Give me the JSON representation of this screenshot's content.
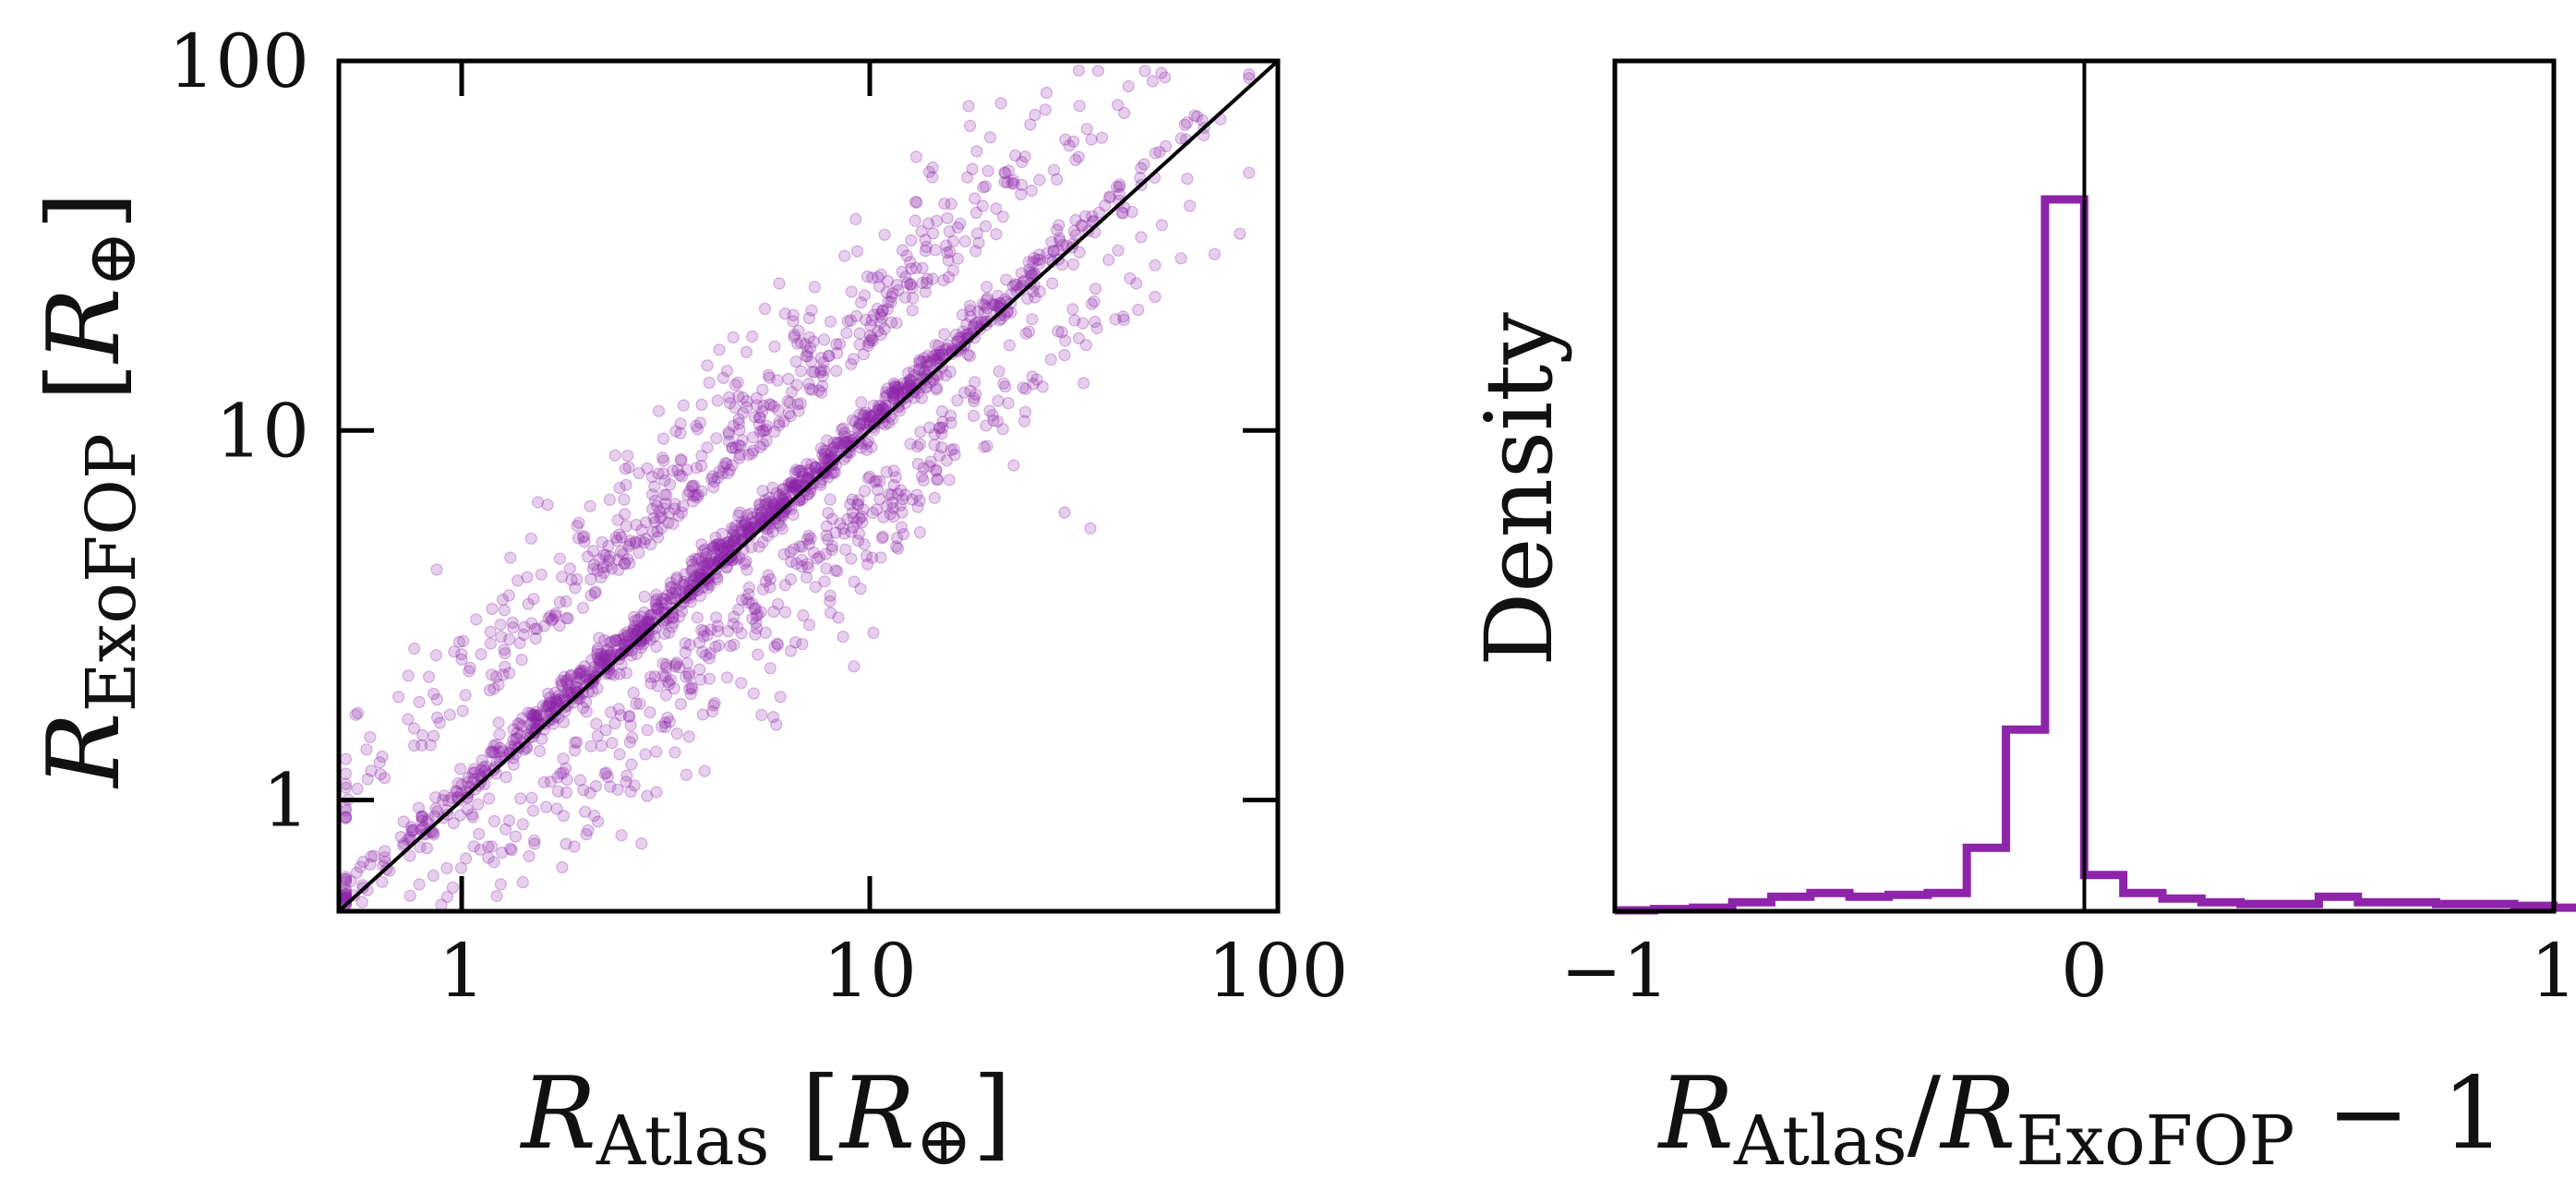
{
  "colors": {
    "accent": "#8e24aa",
    "axis": "#000000",
    "background": "#ffffff"
  },
  "chart_data": [
    {
      "type": "scatter",
      "xscale": "log",
      "yscale": "log",
      "xlim": [
        0.5,
        100
      ],
      "ylim": [
        0.5,
        100
      ],
      "xlabel": {
        "main": "R",
        "sub": "Atlas",
        "bracket_open": " [",
        "inner_main": "R",
        "inner_sub": "⊕",
        "bracket_close": "]"
      },
      "ylabel": {
        "main": "R",
        "sub": "ExoFOP",
        "bracket_open": " [",
        "inner_main": "R",
        "inner_sub": "⊕",
        "bracket_close": "]"
      },
      "xticks": [
        {
          "value": 1,
          "label": "1"
        },
        {
          "value": 10,
          "label": "10"
        },
        {
          "value": 100,
          "label": "100"
        }
      ],
      "yticks": [
        {
          "value": 1,
          "label": "1"
        },
        {
          "value": 10,
          "label": "10"
        },
        {
          "value": 100,
          "label": "100"
        }
      ],
      "reference_line": "y = x",
      "marker_color": "#8e24aa",
      "marker_alpha": 0.22,
      "n_points": 2200,
      "points_sample": [
        [
          0.55,
          1.7
        ],
        [
          0.6,
          1.2
        ],
        [
          0.7,
          1.9
        ],
        [
          0.8,
          0.9
        ],
        [
          0.9,
          1.0
        ],
        [
          1.0,
          1.1
        ],
        [
          1.2,
          1.4
        ],
        [
          1.5,
          1.7
        ],
        [
          1.8,
          2.1
        ],
        [
          2.0,
          2.3
        ],
        [
          2.5,
          2.8
        ],
        [
          3.0,
          3.3
        ],
        [
          3.5,
          3.8
        ],
        [
          4.0,
          4.3
        ],
        [
          5.0,
          5.3
        ],
        [
          6.0,
          6.2
        ],
        [
          7.0,
          7.3
        ],
        [
          8.0,
          8.4
        ],
        [
          9.0,
          9.4
        ],
        [
          10.0,
          10.5
        ],
        [
          12.0,
          12.5
        ],
        [
          15.0,
          16.0
        ],
        [
          18.0,
          19.0
        ],
        [
          20.0,
          22.0
        ],
        [
          13.0,
          55.0
        ],
        [
          3.0,
          1.05
        ],
        [
          30.0,
          6.0
        ],
        [
          50.0,
          28.0
        ],
        [
          70.0,
          30.0
        ],
        [
          60.0,
          48.0
        ],
        [
          1.5,
          3.5
        ],
        [
          2.0,
          5.0
        ],
        [
          2.5,
          6.5
        ],
        [
          4.0,
          9.0
        ],
        [
          5.0,
          12.0
        ],
        [
          6.0,
          25.0
        ],
        [
          4.0,
          15.0
        ],
        [
          1.7,
          3.2
        ],
        [
          1.2,
          2.0
        ],
        [
          1.0,
          2.4
        ],
        [
          3.0,
          2.6
        ],
        [
          5.0,
          4.2
        ],
        [
          8.0,
          6.5
        ],
        [
          10.0,
          7.5
        ],
        [
          15.0,
          9.0
        ],
        [
          20.0,
          11.0
        ],
        [
          25.0,
          14.0
        ],
        [
          30.0,
          16.0
        ],
        [
          40.0,
          20.0
        ],
        [
          50.0,
          23.0
        ],
        [
          35.0,
          22.0
        ],
        [
          45.0,
          25.0
        ],
        [
          25.0,
          20.0
        ],
        [
          12.0,
          6.0
        ],
        [
          9.0,
          4.5
        ],
        [
          7.0,
          4.0
        ],
        [
          14.0,
          8.0
        ],
        [
          18.0,
          12.0
        ],
        [
          22.0,
          17.0
        ],
        [
          28.0,
          25.0
        ]
      ]
    },
    {
      "type": "histogram",
      "xlim": [
        -1,
        1
      ],
      "xlabel": {
        "main": "R",
        "sub": "Atlas",
        "sep": "/",
        "main2": "R",
        "sub2": "ExoFOP",
        "tail": " − 1"
      },
      "ylabel": "Density",
      "xticks": [
        {
          "value": -1,
          "label": "−1"
        },
        {
          "value": 0,
          "label": "0"
        },
        {
          "value": 1,
          "label": "1"
        }
      ],
      "yticks": [],
      "vertical_line_at": 0,
      "line_color": "#8e24aa",
      "bin_width": 0.0833,
      "bin_edges_start": -1.0,
      "density": [
        0.005,
        0.012,
        0.02,
        0.05,
        0.08,
        0.1,
        0.08,
        0.09,
        0.1,
        0.35,
        1.0,
        3.92,
        0.2,
        0.1,
        0.07,
        0.05,
        0.04,
        0.04,
        0.08,
        0.05,
        0.05,
        0.04,
        0.04,
        0.03,
        0.02
      ]
    }
  ]
}
